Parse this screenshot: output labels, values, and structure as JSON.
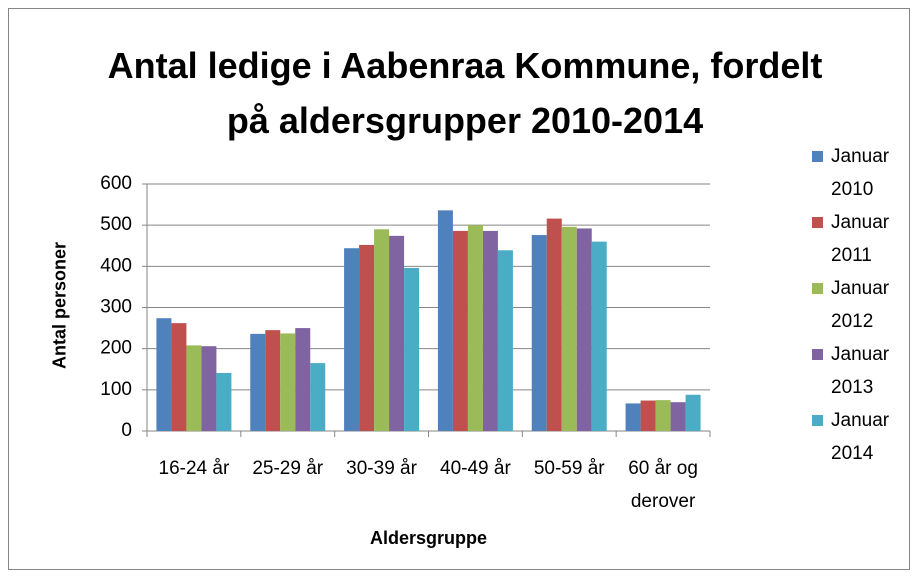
{
  "chart_data": {
    "type": "bar",
    "title": "Antal ledige i Aabenraa Kommune, fordelt på aldersgrupper 2010-2014",
    "x_label": "Aldersgruppe",
    "y_label": "Antal personer",
    "categories": [
      "16-24 år",
      "25-29 år",
      "30-39 år",
      "40-49 år",
      "50-59 år",
      "60 år og derover"
    ],
    "series": [
      {
        "name": "Januar 2010",
        "color": "#4f81bd",
        "values": [
          274,
          236,
          444,
          536,
          476,
          67
        ]
      },
      {
        "name": "Januar 2011",
        "color": "#c0504d",
        "values": [
          262,
          245,
          452,
          486,
          516,
          74
        ]
      },
      {
        "name": "Januar 2012",
        "color": "#9bbb59",
        "values": [
          208,
          237,
          490,
          500,
          496,
          75
        ]
      },
      {
        "name": "Januar 2013",
        "color": "#8064a2",
        "values": [
          206,
          250,
          474,
          486,
          492,
          70
        ]
      },
      {
        "name": "Januar 2014",
        "color": "#4bacc6",
        "values": [
          141,
          165,
          396,
          439,
          460,
          88
        ]
      }
    ],
    "ylim": [
      0,
      600
    ],
    "yticks": [
      0,
      100,
      200,
      300,
      400,
      500,
      600
    ],
    "grid": true,
    "legend": "right"
  }
}
